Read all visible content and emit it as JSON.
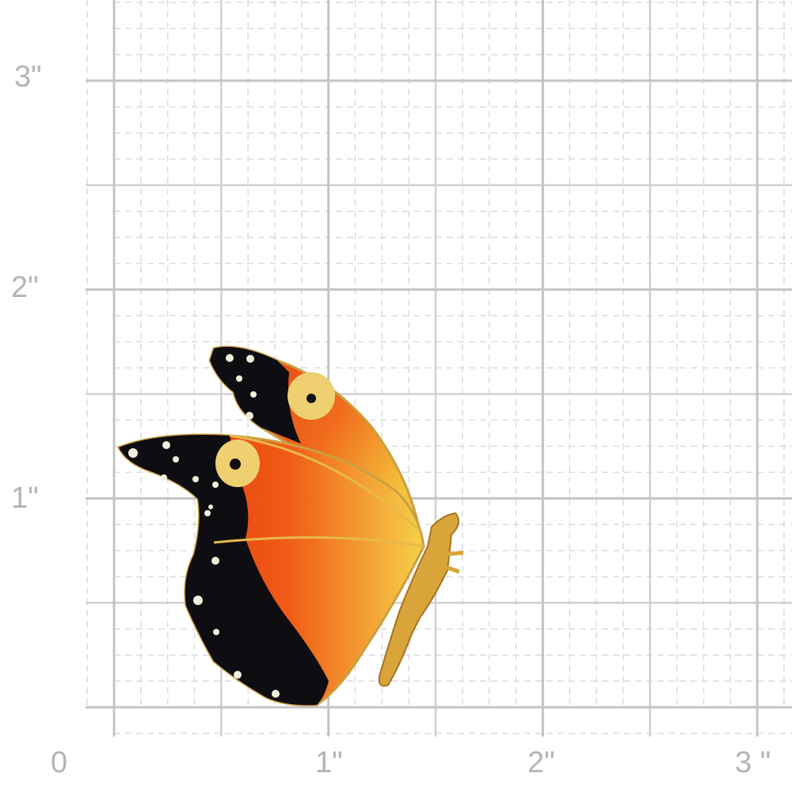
{
  "ruler": {
    "y_labels": [
      "3\"",
      "2\"",
      "1\""
    ],
    "x_labels": [
      "0",
      "1\"",
      "2\"",
      "3 \""
    ]
  },
  "colors": {
    "grid_major": "#c4c4c4",
    "grid_minor": "#dcdcdc",
    "wing_black": "#0d0d12",
    "wing_orange": "#f0641a",
    "wing_red": "#e0300e",
    "wing_yellow": "#f2c640",
    "gold": "#d9a53a"
  },
  "subject": "butterfly-brooch"
}
